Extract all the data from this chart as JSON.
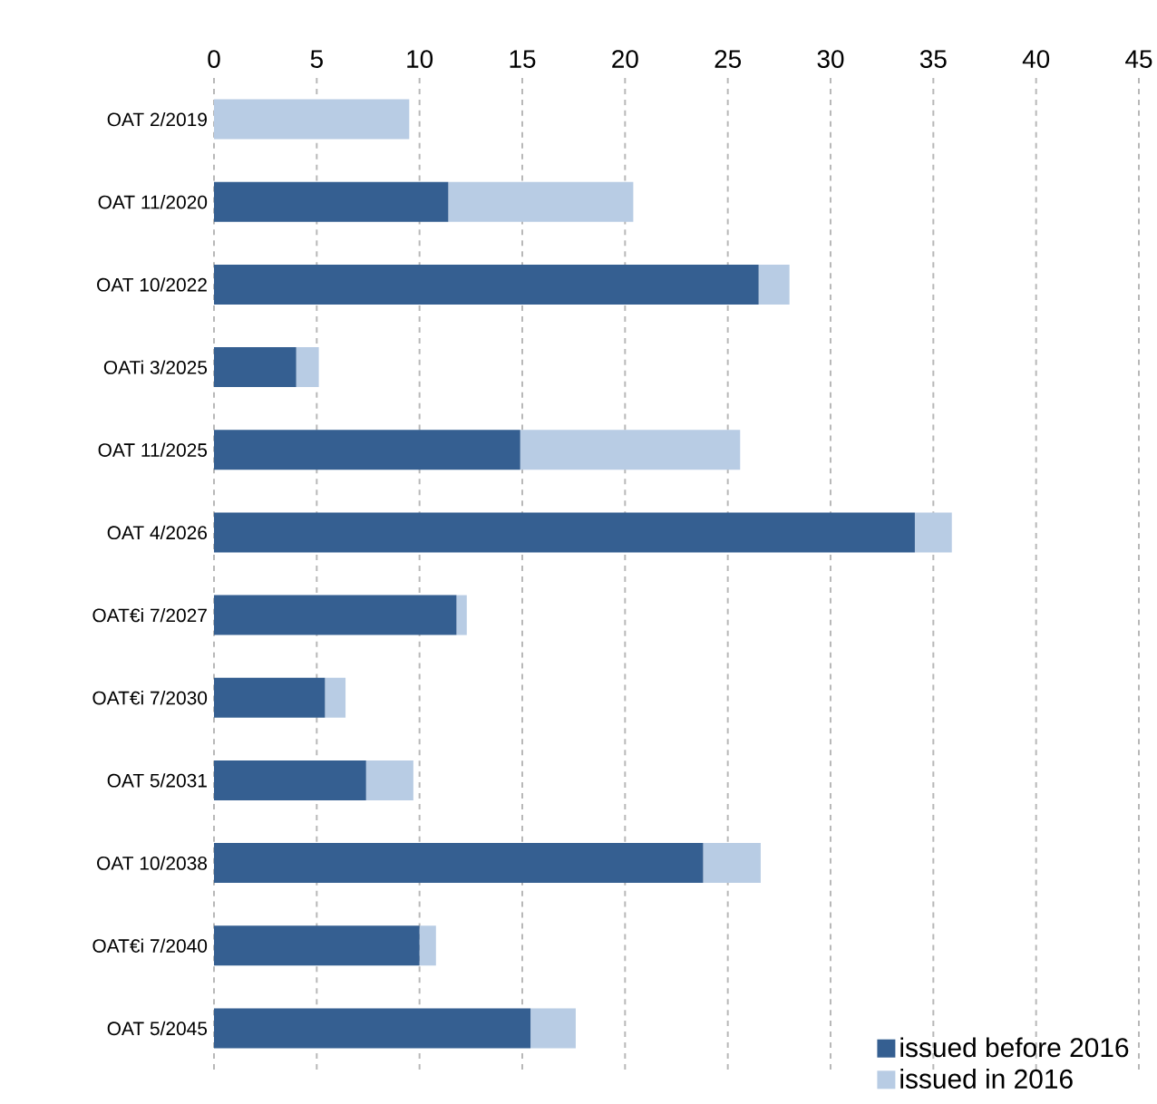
{
  "chart_data": {
    "type": "bar",
    "orientation": "horizontal",
    "stacked": true,
    "categories": [
      "OAT 2/2019",
      "OAT 11/2020",
      "OAT 10/2022",
      "OATi 3/2025",
      "OAT 11/2025",
      "OAT 4/2026",
      "OAT€i 7/2027",
      "OAT€i 7/2030",
      "OAT 5/2031",
      "OAT 10/2038",
      "OAT€i 7/2040",
      "OAT 5/2045"
    ],
    "series": [
      {
        "name": "issued before 2016",
        "color": "#355f91",
        "values": [
          0,
          11.4,
          26.5,
          4.0,
          14.9,
          34.1,
          11.8,
          5.4,
          7.4,
          23.8,
          10.0,
          15.4
        ]
      },
      {
        "name": "issued in 2016",
        "color": "#b8cce4",
        "values": [
          9.5,
          9.0,
          1.5,
          1.1,
          10.7,
          1.8,
          0.5,
          1.0,
          2.3,
          2.8,
          0.8,
          2.2
        ]
      }
    ],
    "xlim": [
      0,
      45
    ],
    "xticks": [
      0,
      5,
      10,
      15,
      20,
      25,
      30,
      35,
      40,
      45
    ],
    "grid": "x",
    "legend": "bottom right"
  }
}
